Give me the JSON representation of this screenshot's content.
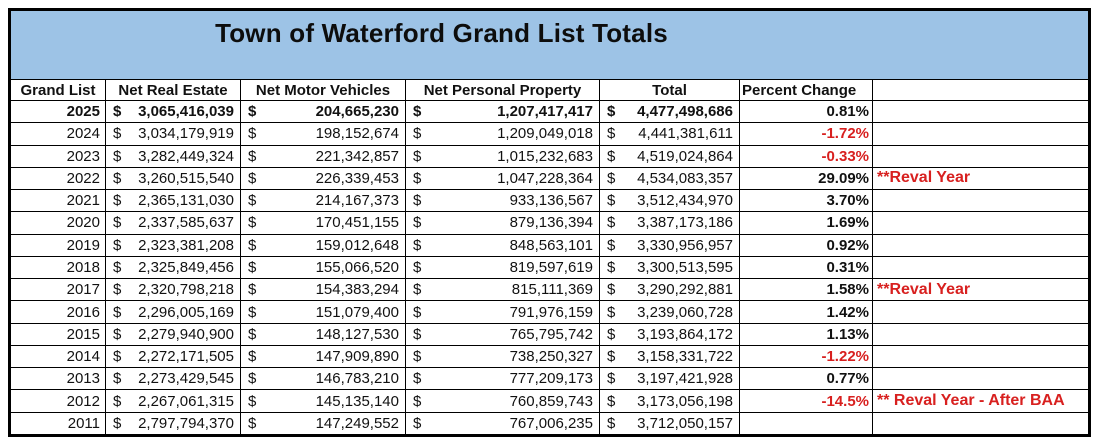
{
  "title": "Town of Waterford Grand List Totals",
  "currency_symbol": "$",
  "columns": {
    "grand_list": "Grand List",
    "net_real_estate": "Net Real Estate",
    "net_motor_vehicles": "Net Motor Vehicles",
    "net_personal_property": "Net Personal Property",
    "total": "Total",
    "percent_change": "Percent Change",
    "notes": ""
  },
  "colors": {
    "title_band_blue": "#9DC3E6",
    "negative_and_note_red": "#D8201F",
    "grid_line_black": "#000000"
  },
  "rows": [
    {
      "year": "2025",
      "net_real_estate": "3,065,416,039",
      "net_motor_vehicles": "204,665,230",
      "net_personal_property": "1,207,417,417",
      "total": "4,477,498,686",
      "percent_change": "0.81%",
      "percent_negative": false,
      "note": "",
      "emphasis": true
    },
    {
      "year": "2024",
      "net_real_estate": "3,034,179,919",
      "net_motor_vehicles": "198,152,674",
      "net_personal_property": "1,209,049,018",
      "total": "4,441,381,611",
      "percent_change": "-1.72%",
      "percent_negative": true,
      "note": "",
      "emphasis": false
    },
    {
      "year": "2023",
      "net_real_estate": "3,282,449,324",
      "net_motor_vehicles": "221,342,857",
      "net_personal_property": "1,015,232,683",
      "total": "4,519,024,864",
      "percent_change": "-0.33%",
      "percent_negative": true,
      "note": "",
      "emphasis": false
    },
    {
      "year": "2022",
      "net_real_estate": "3,260,515,540",
      "net_motor_vehicles": "226,339,453",
      "net_personal_property": "1,047,228,364",
      "total": "4,534,083,357",
      "percent_change": "29.09%",
      "percent_negative": false,
      "note": "**Reval Year",
      "emphasis": false
    },
    {
      "year": "2021",
      "net_real_estate": "2,365,131,030",
      "net_motor_vehicles": "214,167,373",
      "net_personal_property": "933,136,567",
      "total": "3,512,434,970",
      "percent_change": "3.70%",
      "percent_negative": false,
      "note": "",
      "emphasis": false
    },
    {
      "year": "2020",
      "net_real_estate": "2,337,585,637",
      "net_motor_vehicles": "170,451,155",
      "net_personal_property": "879,136,394",
      "total": "3,387,173,186",
      "percent_change": "1.69%",
      "percent_negative": false,
      "note": "",
      "emphasis": false
    },
    {
      "year": "2019",
      "net_real_estate": "2,323,381,208",
      "net_motor_vehicles": "159,012,648",
      "net_personal_property": "848,563,101",
      "total": "3,330,956,957",
      "percent_change": "0.92%",
      "percent_negative": false,
      "note": "",
      "emphasis": false
    },
    {
      "year": "2018",
      "net_real_estate": "2,325,849,456",
      "net_motor_vehicles": "155,066,520",
      "net_personal_property": "819,597,619",
      "total": "3,300,513,595",
      "percent_change": "0.31%",
      "percent_negative": false,
      "note": "",
      "emphasis": false
    },
    {
      "year": "2017",
      "net_real_estate": "2,320,798,218",
      "net_motor_vehicles": "154,383,294",
      "net_personal_property": "815,111,369",
      "total": "3,290,292,881",
      "percent_change": "1.58%",
      "percent_negative": false,
      "note": "**Reval Year",
      "emphasis": false
    },
    {
      "year": "2016",
      "net_real_estate": "2,296,005,169",
      "net_motor_vehicles": "151,079,400",
      "net_personal_property": "791,976,159",
      "total": "3,239,060,728",
      "percent_change": "1.42%",
      "percent_negative": false,
      "note": "",
      "emphasis": false
    },
    {
      "year": "2015",
      "net_real_estate": "2,279,940,900",
      "net_motor_vehicles": "148,127,530",
      "net_personal_property": "765,795,742",
      "total": "3,193,864,172",
      "percent_change": "1.13%",
      "percent_negative": false,
      "note": "",
      "emphasis": false
    },
    {
      "year": "2014",
      "net_real_estate": "2,272,171,505",
      "net_motor_vehicles": "147,909,890",
      "net_personal_property": "738,250,327",
      "total": "3,158,331,722",
      "percent_change": "-1.22%",
      "percent_negative": true,
      "note": "",
      "emphasis": false
    },
    {
      "year": "2013",
      "net_real_estate": "2,273,429,545",
      "net_motor_vehicles": "146,783,210",
      "net_personal_property": "777,209,173",
      "total": "3,197,421,928",
      "percent_change": "0.77%",
      "percent_negative": false,
      "note": "",
      "emphasis": false
    },
    {
      "year": "2012",
      "net_real_estate": "2,267,061,315",
      "net_motor_vehicles": "145,135,140",
      "net_personal_property": "760,859,743",
      "total": "3,173,056,198",
      "percent_change": "-14.5%",
      "percent_negative": true,
      "note": "** Reval Year - After BAA",
      "emphasis": false
    },
    {
      "year": "2011",
      "net_real_estate": "2,797,794,370",
      "net_motor_vehicles": "147,249,552",
      "net_personal_property": "767,006,235",
      "total": "3,712,050,157",
      "percent_change": "",
      "percent_negative": false,
      "note": "",
      "emphasis": false
    }
  ]
}
